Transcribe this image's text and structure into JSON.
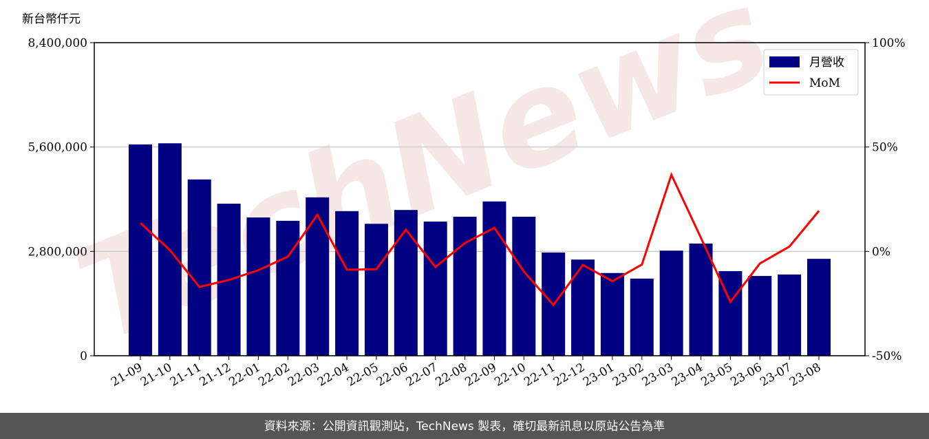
{
  "chart_data": {
    "type": "bar",
    "y_label": "新台幣仟元",
    "watermark": "TechNews",
    "categories": [
      "21-09",
      "21-10",
      "21-11",
      "21-12",
      "22-01",
      "22-02",
      "22-03",
      "22-04",
      "22-05",
      "22-06",
      "22-07",
      "22-08",
      "22-09",
      "22-10",
      "22-11",
      "22-12",
      "23-01",
      "23-02",
      "23-03",
      "23-04",
      "23-05",
      "23-06",
      "23-07",
      "23-08"
    ],
    "series": [
      {
        "name": "月營收",
        "type": "bar",
        "color": "#000080",
        "values": [
          5670000,
          5700000,
          4730000,
          4080000,
          3710000,
          3620000,
          4250000,
          3880000,
          3540000,
          3910000,
          3600000,
          3730000,
          4140000,
          3730000,
          2770000,
          2580000,
          2220000,
          2070000,
          2820000,
          3010000,
          2270000,
          2140000,
          2180000,
          2600000
        ]
      },
      {
        "name": "MoM",
        "type": "line",
        "axis": "y2",
        "color": "#ff0000",
        "values": [
          13.6,
          0.6,
          -17,
          -13.7,
          -9,
          -2.5,
          17.5,
          -8.8,
          -8.5,
          10.4,
          -7.5,
          4,
          11.3,
          -9.7,
          -25.7,
          -6.5,
          -14.3,
          -6.3,
          36.7,
          6.5,
          -24.2,
          -5.8,
          2.3,
          19.4
        ]
      }
    ],
    "ylim": [
      0,
      8400000
    ],
    "yticks": [
      0,
      {
        "value": 2800000,
        "label": "2,800,000"
      },
      {
        "value": 5600000,
        "label": "5,600,000"
      },
      {
        "value": 8400000,
        "label": "8,400,000"
      }
    ],
    "y2lim": [
      -50,
      100
    ],
    "y2ticks": [
      {
        "value": -50,
        "label": "-50%"
      },
      {
        "value": 0,
        "label": "0%"
      },
      {
        "value": 50,
        "label": "50%"
      },
      {
        "value": 100,
        "label": "100%"
      }
    ],
    "grid": true,
    "legend": "upper right",
    "footer": "資料來源：公開資訊觀測站，TechNews 製表，確切最新訊息以原站公告為準"
  }
}
